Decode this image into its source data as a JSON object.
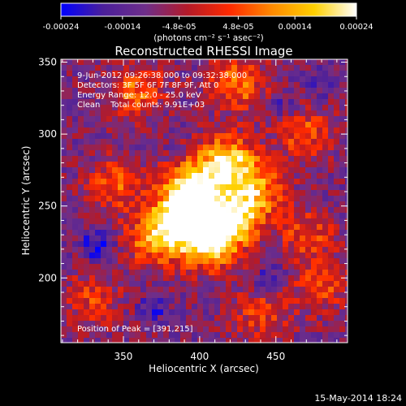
{
  "colorbar": {
    "tick_labels": [
      "-0.00024",
      "-0.00014",
      "-4.8e-05",
      "4.8e-05",
      "0.00014",
      "0.00024"
    ],
    "tick_values": [
      -0.00024,
      -0.00014,
      -4.8e-05,
      4.8e-05,
      0.00014,
      0.00024
    ],
    "range": [
      -0.00024,
      0.00024
    ],
    "unit_label": "(photons cm⁻² s⁻¹ asec⁻²)",
    "colormap_stops": [
      "#0000ff",
      "#4b1f9a",
      "#6e2e8a",
      "#b41a28",
      "#ff2a00",
      "#ff8a00",
      "#ffd000",
      "#ffffff"
    ]
  },
  "chart_data": {
    "type": "heatmap",
    "title": "Reconstructed RHESSI Image",
    "xlabel": "Heliocentric X (arcsec)",
    "ylabel": "Heliocentric Y (arcsec)",
    "xlim": [
      309,
      497
    ],
    "ylim": [
      155,
      352
    ],
    "x_ticks": [
      350,
      400,
      450
    ],
    "y_ticks": [
      200,
      250,
      300,
      350
    ],
    "x_tick_labels": [
      "350",
      "400",
      "450"
    ],
    "y_tick_labels": [
      "200",
      "250",
      "300",
      "350"
    ],
    "annotations": [
      "9-Jun-2012 09:26:38.000 to 09:32:38.000",
      "Detectors: 3F 5F 6F 7F 8F 9F, Att 0",
      "Energy Range: 12.0 - 25.0 keV",
      "Clean    Total counts: 9.91E+03"
    ],
    "peak_label": "Position of Peak = [391,215]",
    "peak_position": [
      391,
      215
    ],
    "grid": false,
    "hotspots": [
      {
        "x": 395,
        "y": 262,
        "strength": 1.0
      },
      {
        "x": 418,
        "y": 280,
        "strength": 1.0
      },
      {
        "x": 390,
        "y": 245,
        "strength": 0.95
      },
      {
        "x": 405,
        "y": 225,
        "strength": 1.0
      },
      {
        "x": 420,
        "y": 240,
        "strength": 0.95
      },
      {
        "x": 372,
        "y": 228,
        "strength": 0.8
      },
      {
        "x": 437,
        "y": 260,
        "strength": 0.7
      },
      {
        "x": 358,
        "y": 330,
        "strength": 0.55
      },
      {
        "x": 425,
        "y": 335,
        "strength": 0.6
      },
      {
        "x": 468,
        "y": 300,
        "strength": 0.5
      },
      {
        "x": 470,
        "y": 230,
        "strength": 0.45
      },
      {
        "x": 480,
        "y": 195,
        "strength": 0.45
      },
      {
        "x": 345,
        "y": 265,
        "strength": 0.5
      },
      {
        "x": 330,
        "y": 185,
        "strength": 0.4
      },
      {
        "x": 440,
        "y": 175,
        "strength": 0.4
      }
    ],
    "coldspots": [
      {
        "x": 333,
        "y": 222,
        "strength": 1.0
      },
      {
        "x": 447,
        "y": 198,
        "strength": 0.7
      },
      {
        "x": 480,
        "y": 337,
        "strength": 0.6
      },
      {
        "x": 370,
        "y": 180,
        "strength": 0.6
      },
      {
        "x": 455,
        "y": 320,
        "strength": 0.5
      }
    ]
  },
  "footer": {
    "timestamp": "15-May-2014 18:24"
  }
}
